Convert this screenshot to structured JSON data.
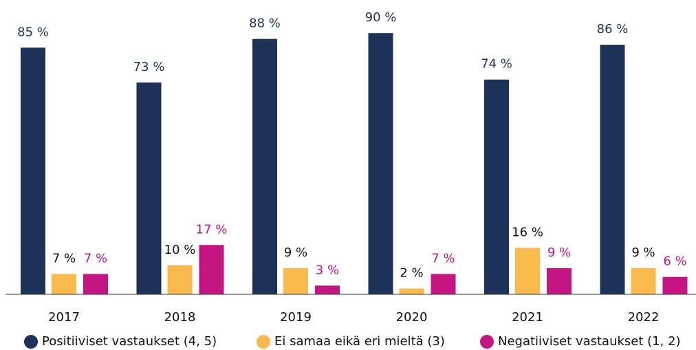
{
  "chart_data": {
    "type": "bar",
    "categories": [
      "2017",
      "2018",
      "2019",
      "2020",
      "2021",
      "2022"
    ],
    "series": [
      {
        "name": "Positiiviset vastaukset (4, 5)",
        "color": "#1d3259",
        "label_color": "#1d3259",
        "values": [
          85,
          73,
          88,
          90,
          74,
          86
        ],
        "value_labels": [
          "85 %",
          "73 %",
          "88 %",
          "90 %",
          "74 %",
          "86 %"
        ]
      },
      {
        "name": "Ei samaa eikä eri mieltä (3)",
        "color": "#f9b94d",
        "label_color": "#111111",
        "values": [
          7,
          10,
          9,
          2,
          16,
          9
        ],
        "value_labels": [
          "7 %",
          "10 %",
          "9 %",
          "2 %",
          "16 %",
          "9 %"
        ]
      },
      {
        "name": "Negatiiviset vastaukset (1, 2)",
        "color": "#c41582",
        "label_color": "#c41582",
        "values": [
          7,
          17,
          3,
          7,
          9,
          6
        ],
        "value_labels": [
          "7 %",
          "17 %",
          "3 %",
          "7 %",
          "9 %",
          "6 %"
        ]
      }
    ]
  }
}
